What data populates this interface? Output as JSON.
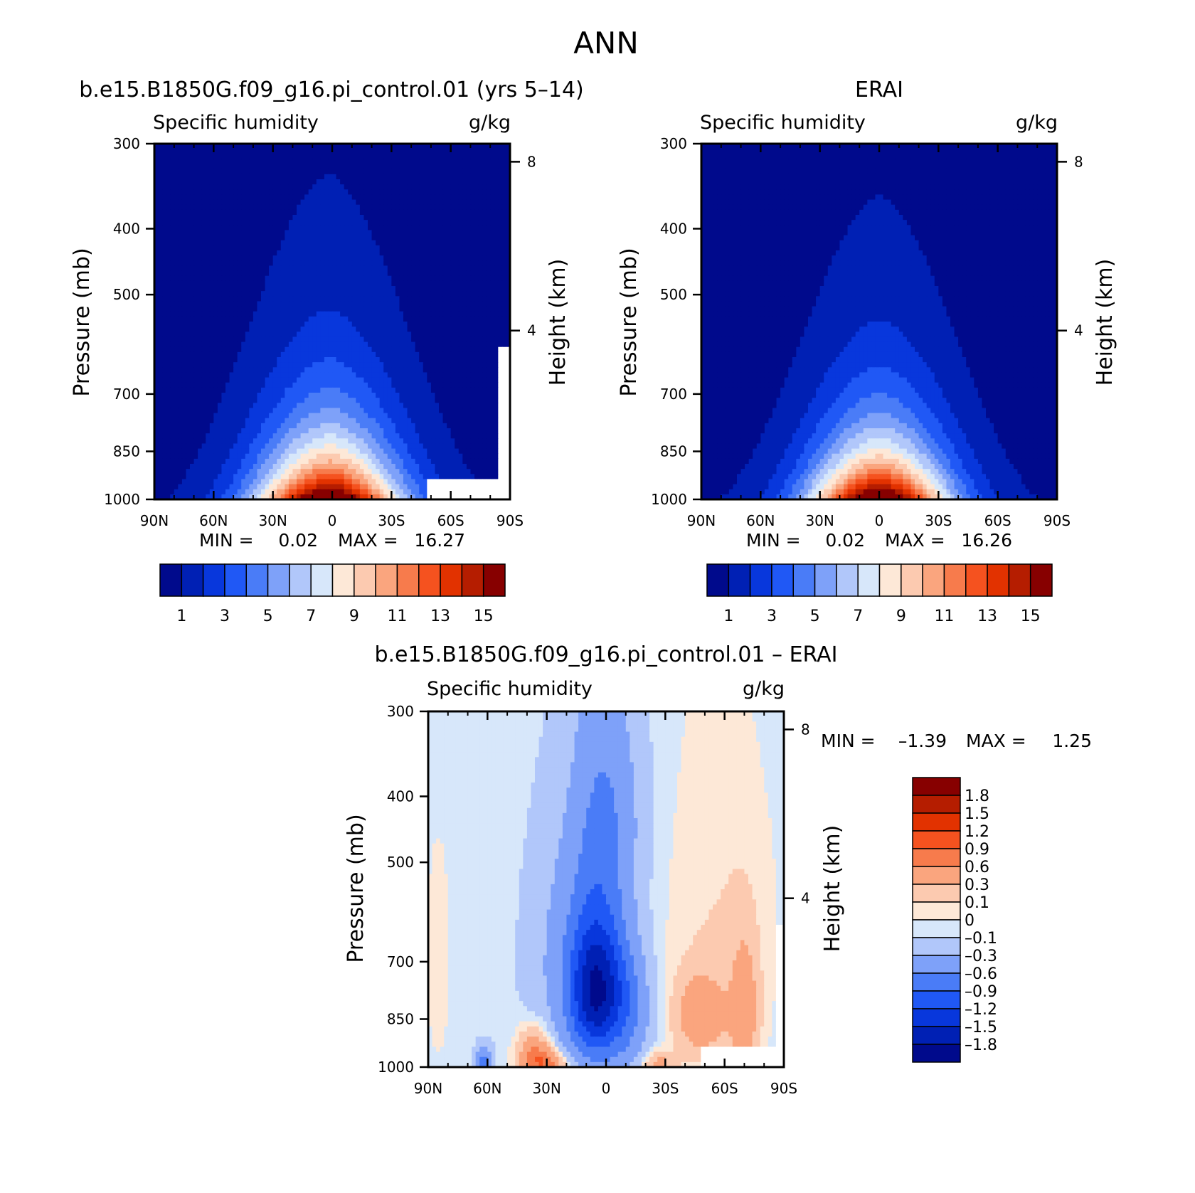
{
  "figure_title": "ANN",
  "colors": {
    "abs_levels": [
      "#000a8c",
      "#0020b4",
      "#0837dc",
      "#2058f5",
      "#4a7cf7",
      "#7ea1f9",
      "#b1c7fa",
      "#d7e7fa",
      "#fde8d7",
      "#fccab0",
      "#faa57e",
      "#f77b4c",
      "#f5521f",
      "#e23200",
      "#b51d00",
      "#870000"
    ],
    "diff_levels": [
      "#000a8c",
      "#0020b4",
      "#0837dc",
      "#2058f5",
      "#4a7cf7",
      "#7ea1f9",
      "#b1c7fa",
      "#d7e7fa",
      "#fde8d7",
      "#fccab0",
      "#faa57e",
      "#f77b4c",
      "#f5521f",
      "#e23200",
      "#b51d00",
      "#870000"
    ],
    "missing": "#ffffff"
  },
  "chart_data": [
    {
      "type": "heatmap",
      "panel": "model",
      "title": "b.e15.B1850G.f09_g16.pi_control.01 (yrs 5–14)",
      "left_label": "Specific humidity",
      "right_label": "g/kg",
      "xlabel": "",
      "ylabel": "Pressure (mb)",
      "ylabel_right": "Height (km)",
      "xticks": [
        "90N",
        "60N",
        "30N",
        "0",
        "30S",
        "60S",
        "90S"
      ],
      "yticks": [
        "300",
        "400",
        "500",
        "700",
        "850",
        "1000"
      ],
      "yticks_right": [
        "8",
        "4"
      ],
      "xlim": [
        90,
        -90
      ],
      "ylim": [
        1000,
        300
      ],
      "stats": {
        "min_label": "MIN =",
        "min": "0.02",
        "max_label": "MAX =",
        "max": "16.27"
      },
      "colorbar": {
        "labels": [
          "1",
          "3",
          "5",
          "7",
          "9",
          "11",
          "13",
          "15"
        ],
        "levels": [
          0,
          1,
          2,
          3,
          4,
          5,
          6,
          7,
          8,
          9,
          10,
          11,
          12,
          13,
          14,
          15,
          16
        ]
      },
      "field": {
        "peak": 16.27,
        "center_lat": 2,
        "lat_scale": 26,
        "background": 0.4,
        "height_scale": 2.2
      },
      "missing_regions": [
        {
          "lat_range": [
            -49,
            -90
          ],
          "p_range": [
            930,
            1000
          ]
        },
        {
          "lat_range": [
            -84,
            -90
          ],
          "p_range": [
            600,
            930
          ]
        }
      ]
    },
    {
      "type": "heatmap",
      "panel": "obs",
      "title": "ERAI",
      "left_label": "Specific humidity",
      "right_label": "g/kg",
      "xlabel": "",
      "ylabel": "Pressure (mb)",
      "ylabel_right": "Height (km)",
      "xticks": [
        "90N",
        "60N",
        "30N",
        "0",
        "30S",
        "60S",
        "90S"
      ],
      "yticks": [
        "300",
        "400",
        "500",
        "700",
        "850",
        "1000"
      ],
      "yticks_right": [
        "8",
        "4"
      ],
      "xlim": [
        90,
        -90
      ],
      "ylim": [
        1000,
        300
      ],
      "stats": {
        "min_label": "MIN =",
        "min": "0.02",
        "max_label": "MAX =",
        "max": "16.26"
      },
      "colorbar": {
        "labels": [
          "1",
          "3",
          "5",
          "7",
          "9",
          "11",
          "13",
          "15"
        ],
        "levels": [
          0,
          1,
          2,
          3,
          4,
          5,
          6,
          7,
          8,
          9,
          10,
          11,
          12,
          13,
          14,
          15,
          16
        ]
      },
      "field": {
        "peak": 16.26,
        "center_lat": 0,
        "lat_scale": 25,
        "background": 0.4,
        "height_scale": 2.3
      },
      "missing_regions": []
    },
    {
      "type": "heatmap",
      "panel": "difference",
      "title": "b.e15.B1850G.f09_g16.pi_control.01 – ERAI",
      "left_label": "Specific humidity",
      "right_label": "g/kg",
      "xlabel": "",
      "ylabel": "Pressure (mb)",
      "ylabel_right": "Height (km)",
      "xticks": [
        "90N",
        "60N",
        "30N",
        "0",
        "30S",
        "60S",
        "90S"
      ],
      "yticks": [
        "300",
        "400",
        "500",
        "700",
        "850",
        "1000"
      ],
      "yticks_right": [
        "8",
        "4"
      ],
      "xlim": [
        90,
        -90
      ],
      "ylim": [
        1000,
        300
      ],
      "stats": {
        "min_label": "MIN =",
        "min": "–1.39",
        "max_label": "MAX =",
        "max": "1.25"
      },
      "colorbar": {
        "labels": [
          "1.8",
          "1.5",
          "1.2",
          "0.9",
          "0.6",
          "0.3",
          "0.1",
          "0",
          "–0.1",
          "–0.3",
          "–0.6",
          "–0.9",
          "–1.2",
          "–1.5",
          "–1.8"
        ],
        "levels": [
          -1.8,
          -1.5,
          -1.2,
          -0.9,
          -0.6,
          -0.3,
          -0.1,
          0,
          0.1,
          0.3,
          0.6,
          0.9,
          1.2,
          1.5,
          1.8
        ]
      },
      "blobs": [
        {
          "lat": 5,
          "p": 780,
          "amp": -1.35,
          "sx": 9,
          "sy": 120
        },
        {
          "lat": 3,
          "p": 560,
          "amp": -0.4,
          "sx": 10,
          "sy": 260
        },
        {
          "lat": 18,
          "p": 700,
          "amp": -0.35,
          "sx": 14,
          "sy": 220
        },
        {
          "lat": -12,
          "p": 820,
          "amp": -0.5,
          "sx": 8,
          "sy": 130
        },
        {
          "lat": -5,
          "p": 420,
          "amp": -0.25,
          "sx": 12,
          "sy": 110
        },
        {
          "lat": 62,
          "p": 990,
          "amp": -0.7,
          "sx": 3,
          "sy": 40
        },
        {
          "lat": 36,
          "p": 960,
          "amp": 0.75,
          "sx": 6,
          "sy": 60
        },
        {
          "lat": 28,
          "p": 990,
          "amp": 0.6,
          "sx": 7,
          "sy": 30
        },
        {
          "lat": -26,
          "p": 990,
          "amp": 0.45,
          "sx": 6,
          "sy": 30
        },
        {
          "lat": -48,
          "p": 840,
          "amp": 0.55,
          "sx": 9,
          "sy": 80
        },
        {
          "lat": -70,
          "p": 830,
          "amp": 0.5,
          "sx": 5,
          "sy": 140
        },
        {
          "lat": -57,
          "p": 620,
          "amp": 0.15,
          "sx": 20,
          "sy": 260
        },
        {
          "lat": 85,
          "p": 700,
          "amp": 0.08,
          "sx": 6,
          "sy": 250
        }
      ],
      "background": -0.05,
      "missing_regions": [
        {
          "lat_range": [
            -48,
            -90
          ],
          "p_range": [
            930,
            1000
          ]
        },
        {
          "lat_range": [
            -86,
            -90
          ],
          "p_range": [
            620,
            930
          ]
        }
      ]
    }
  ]
}
